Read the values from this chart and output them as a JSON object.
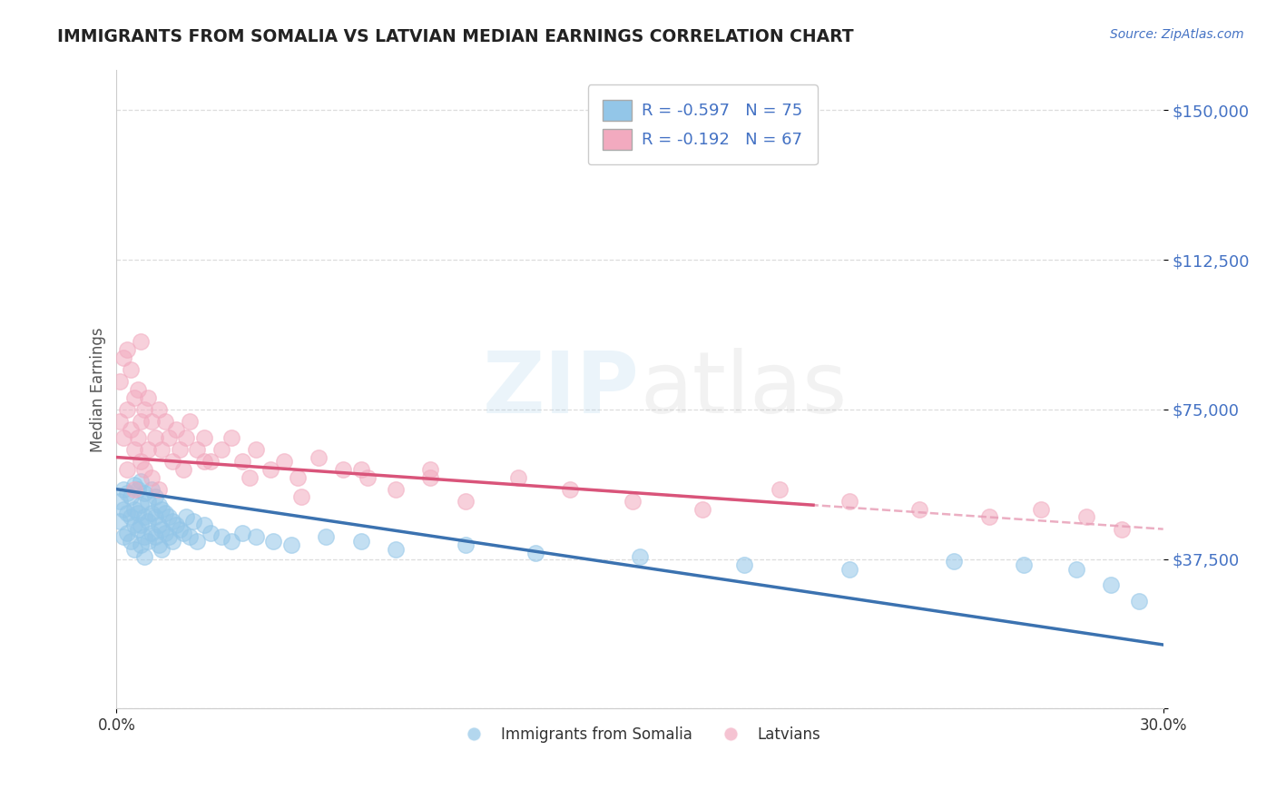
{
  "title": "IMMIGRANTS FROM SOMALIA VS LATVIAN MEDIAN EARNINGS CORRELATION CHART",
  "source": "Source: ZipAtlas.com",
  "ylabel": "Median Earnings",
  "yticks": [
    0,
    37500,
    75000,
    112500,
    150000
  ],
  "ytick_labels": [
    "",
    "$37,500",
    "$75,000",
    "$112,500",
    "$150,000"
  ],
  "xlim": [
    0.0,
    0.3
  ],
  "ylim": [
    0,
    160000
  ],
  "r_blue": -0.597,
  "n_blue": 75,
  "r_pink": -0.192,
  "n_pink": 67,
  "legend_labels": [
    "Immigrants from Somalia",
    "Latvians"
  ],
  "blue_color": "#93C6E8",
  "pink_color": "#F2AABF",
  "trendline_blue": "#3B72B0",
  "trendline_pink": "#D9547A",
  "trendline_dashed_color": "#E8A0B8",
  "watermark_zip_color": "#93C6E8",
  "watermark_atlas_color": "#BBBBBB",
  "blue_intercept": 55000,
  "blue_slope": -130000,
  "pink_intercept": 63000,
  "pink_slope": -60000,
  "blue_scatter_x": [
    0.001,
    0.001,
    0.002,
    0.002,
    0.002,
    0.003,
    0.003,
    0.003,
    0.004,
    0.004,
    0.004,
    0.005,
    0.005,
    0.005,
    0.005,
    0.006,
    0.006,
    0.006,
    0.007,
    0.007,
    0.007,
    0.007,
    0.008,
    0.008,
    0.008,
    0.008,
    0.009,
    0.009,
    0.009,
    0.01,
    0.01,
    0.01,
    0.011,
    0.011,
    0.011,
    0.012,
    0.012,
    0.012,
    0.013,
    0.013,
    0.013,
    0.014,
    0.014,
    0.015,
    0.015,
    0.016,
    0.016,
    0.017,
    0.018,
    0.019,
    0.02,
    0.021,
    0.022,
    0.023,
    0.025,
    0.027,
    0.03,
    0.033,
    0.036,
    0.04,
    0.045,
    0.05,
    0.06,
    0.07,
    0.08,
    0.1,
    0.12,
    0.15,
    0.18,
    0.21,
    0.24,
    0.26,
    0.275,
    0.285,
    0.293
  ],
  "blue_scatter_y": [
    52000,
    47000,
    55000,
    50000,
    43000,
    54000,
    49000,
    44000,
    53000,
    48000,
    42000,
    56000,
    50000,
    46000,
    40000,
    55000,
    49000,
    45000,
    57000,
    51000,
    46000,
    41000,
    54000,
    48000,
    43000,
    38000,
    52000,
    47000,
    42000,
    55000,
    49000,
    44000,
    53000,
    48000,
    43000,
    51000,
    46000,
    41000,
    50000,
    45000,
    40000,
    49000,
    44000,
    48000,
    43000,
    47000,
    42000,
    46000,
    45000,
    44000,
    48000,
    43000,
    47000,
    42000,
    46000,
    44000,
    43000,
    42000,
    44000,
    43000,
    42000,
    41000,
    43000,
    42000,
    40000,
    41000,
    39000,
    38000,
    36000,
    35000,
    37000,
    36000,
    35000,
    31000,
    27000
  ],
  "pink_scatter_x": [
    0.001,
    0.001,
    0.002,
    0.002,
    0.003,
    0.003,
    0.003,
    0.004,
    0.004,
    0.005,
    0.005,
    0.005,
    0.006,
    0.006,
    0.007,
    0.007,
    0.007,
    0.008,
    0.008,
    0.009,
    0.009,
    0.01,
    0.01,
    0.011,
    0.012,
    0.013,
    0.014,
    0.015,
    0.016,
    0.017,
    0.018,
    0.019,
    0.02,
    0.021,
    0.023,
    0.025,
    0.027,
    0.03,
    0.033,
    0.036,
    0.04,
    0.044,
    0.048,
    0.052,
    0.058,
    0.065,
    0.072,
    0.08,
    0.09,
    0.1,
    0.115,
    0.13,
    0.148,
    0.168,
    0.19,
    0.21,
    0.23,
    0.25,
    0.265,
    0.278,
    0.288,
    0.012,
    0.025,
    0.038,
    0.053,
    0.07,
    0.09
  ],
  "pink_scatter_y": [
    82000,
    72000,
    88000,
    68000,
    90000,
    75000,
    60000,
    85000,
    70000,
    78000,
    65000,
    55000,
    80000,
    68000,
    92000,
    72000,
    62000,
    75000,
    60000,
    78000,
    65000,
    72000,
    58000,
    68000,
    75000,
    65000,
    72000,
    68000,
    62000,
    70000,
    65000,
    60000,
    68000,
    72000,
    65000,
    68000,
    62000,
    65000,
    68000,
    62000,
    65000,
    60000,
    62000,
    58000,
    63000,
    60000,
    58000,
    55000,
    60000,
    52000,
    58000,
    55000,
    52000,
    50000,
    55000,
    52000,
    50000,
    48000,
    50000,
    48000,
    45000,
    55000,
    62000,
    58000,
    53000,
    60000,
    58000
  ]
}
